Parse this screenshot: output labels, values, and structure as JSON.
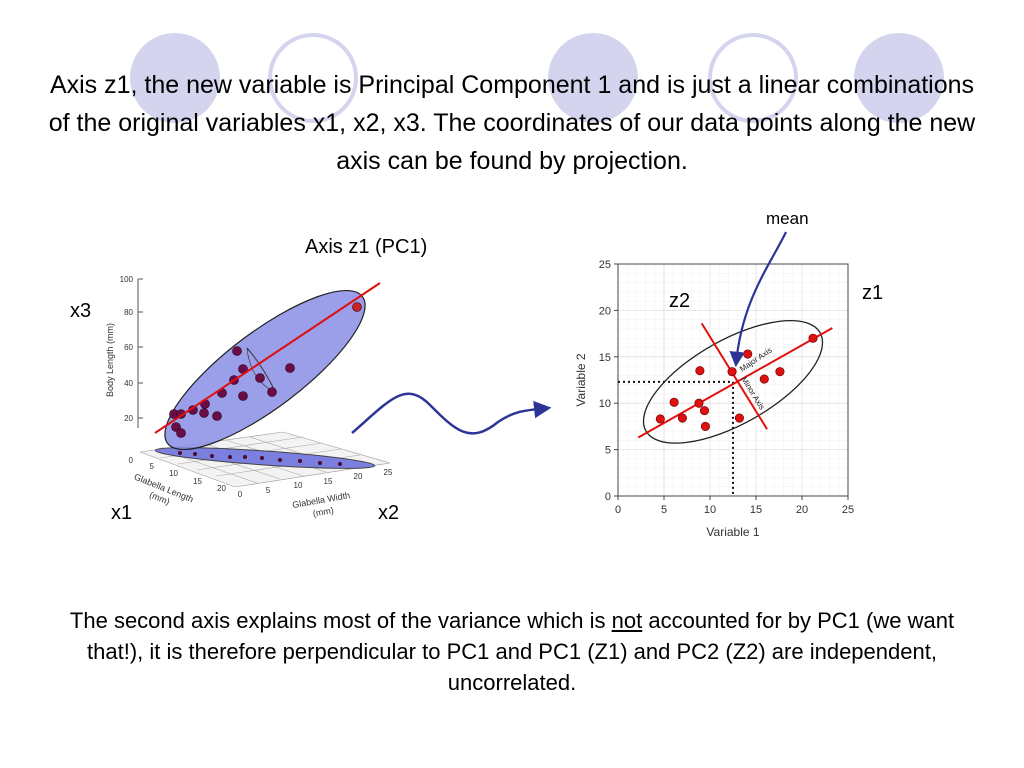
{
  "title": "Axis z1, the new variable is Principal Component 1 and is just a linear combinations of the original variables x1, x2, x3. The coordinates of our data points along the new axis can be found by projection.",
  "caption": {
    "before": "The second axis explains most of the variance which is ",
    "underlined": "not",
    "after": " accounted for by PC1 (we want that!), it is therefore perpendicular to PC1 and PC1 (Z1) and PC2 (Z2) are independent, uncorrelated."
  },
  "left_figure": {
    "heading": "Axis z1 (PC1)",
    "x3": "x3",
    "x1": "x1",
    "x2": "x2",
    "y_axis_label": "Body Length (mm)",
    "y_ticks": [
      "20",
      "40",
      "60",
      "80",
      "100"
    ],
    "glabella_length_label": "Glabella Length",
    "glabella_length_unit": "(mm)",
    "glabella_length_ticks": [
      "0",
      "5",
      "10",
      "15",
      "20"
    ],
    "glabella_width_label": "Glabella Width",
    "glabella_width_unit": "(mm)",
    "glabella_width_ticks": [
      "0",
      "5",
      "10",
      "15",
      "20",
      "25"
    ]
  },
  "right_figure": {
    "mean": "mean",
    "z1": "z1",
    "z2": "z2",
    "major_axis": "Major Axis",
    "minor_axis": "Minor Axis"
  },
  "chart_data": {
    "type": "scatter",
    "xlabel": "Variable 1",
    "ylabel": "Variable 2",
    "xlim": [
      0,
      25
    ],
    "ylim": [
      0,
      25
    ],
    "x_ticks": [
      0,
      5,
      10,
      15,
      20,
      25
    ],
    "y_ticks": [
      0,
      5,
      10,
      15,
      20,
      25
    ],
    "points": [
      {
        "x": 4.6,
        "y": 8.3
      },
      {
        "x": 6.1,
        "y": 10.1
      },
      {
        "x": 7.0,
        "y": 8.4
      },
      {
        "x": 8.8,
        "y": 10.0
      },
      {
        "x": 9.4,
        "y": 9.2
      },
      {
        "x": 9.5,
        "y": 7.5
      },
      {
        "x": 8.9,
        "y": 13.5
      },
      {
        "x": 12.4,
        "y": 13.4
      },
      {
        "x": 13.2,
        "y": 8.4
      },
      {
        "x": 14.1,
        "y": 15.3
      },
      {
        "x": 15.9,
        "y": 12.6
      },
      {
        "x": 17.6,
        "y": 13.4
      },
      {
        "x": 21.2,
        "y": 17.0
      }
    ],
    "mean_point": {
      "x": 12.5,
      "y": 12.3
    },
    "major_axis_line": [
      {
        "x": 2.2,
        "y": 6.3
      },
      {
        "x": 23.3,
        "y": 18.1
      }
    ],
    "minor_axis_line": [
      {
        "x": 9.1,
        "y": 18.6
      },
      {
        "x": 16.2,
        "y": 7.2
      }
    ],
    "colors": {
      "points": "#dd1111",
      "axes_lines": "#dd1111",
      "ellipse": "#222222"
    }
  }
}
